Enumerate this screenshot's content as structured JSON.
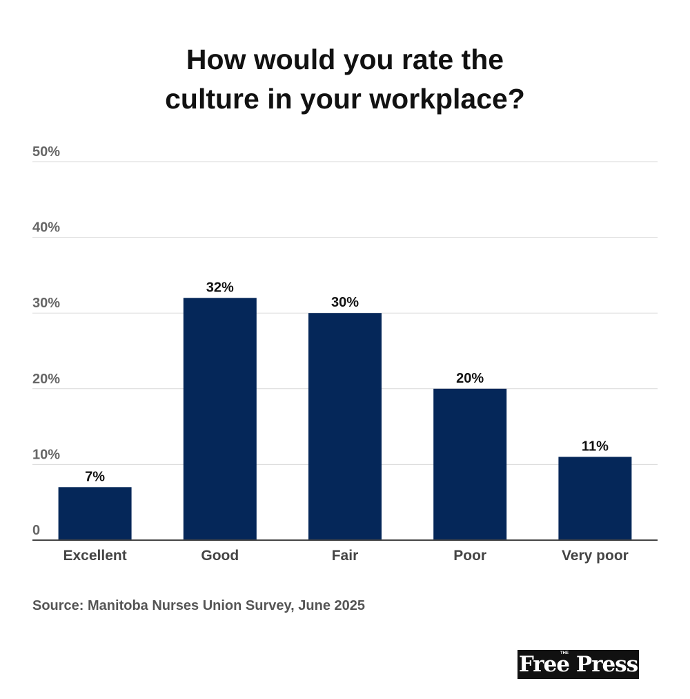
{
  "title_lines": [
    "How would you rate the",
    "culture in your workplace?"
  ],
  "source": "Source: Manitoba Nurses Union Survey, June 2025",
  "logo": {
    "small": "THE",
    "text": "Free Press"
  },
  "chart_data": {
    "type": "bar",
    "title": "How would you rate the culture in your workplace?",
    "categories": [
      "Excellent",
      "Good",
      "Fair",
      "Poor",
      "Very poor"
    ],
    "values": [
      7,
      32,
      30,
      20,
      11
    ],
    "data_labels": [
      "7%",
      "32%",
      "30%",
      "20%",
      "11%"
    ],
    "ylim": [
      0,
      50
    ],
    "yticks": [
      0,
      10,
      20,
      30,
      40,
      50
    ],
    "ytick_labels": [
      "0",
      "10%",
      "20%",
      "30%",
      "40%",
      "50%"
    ],
    "xlabel": "",
    "ylabel": "",
    "grid": true,
    "bar_color": "#052759"
  }
}
